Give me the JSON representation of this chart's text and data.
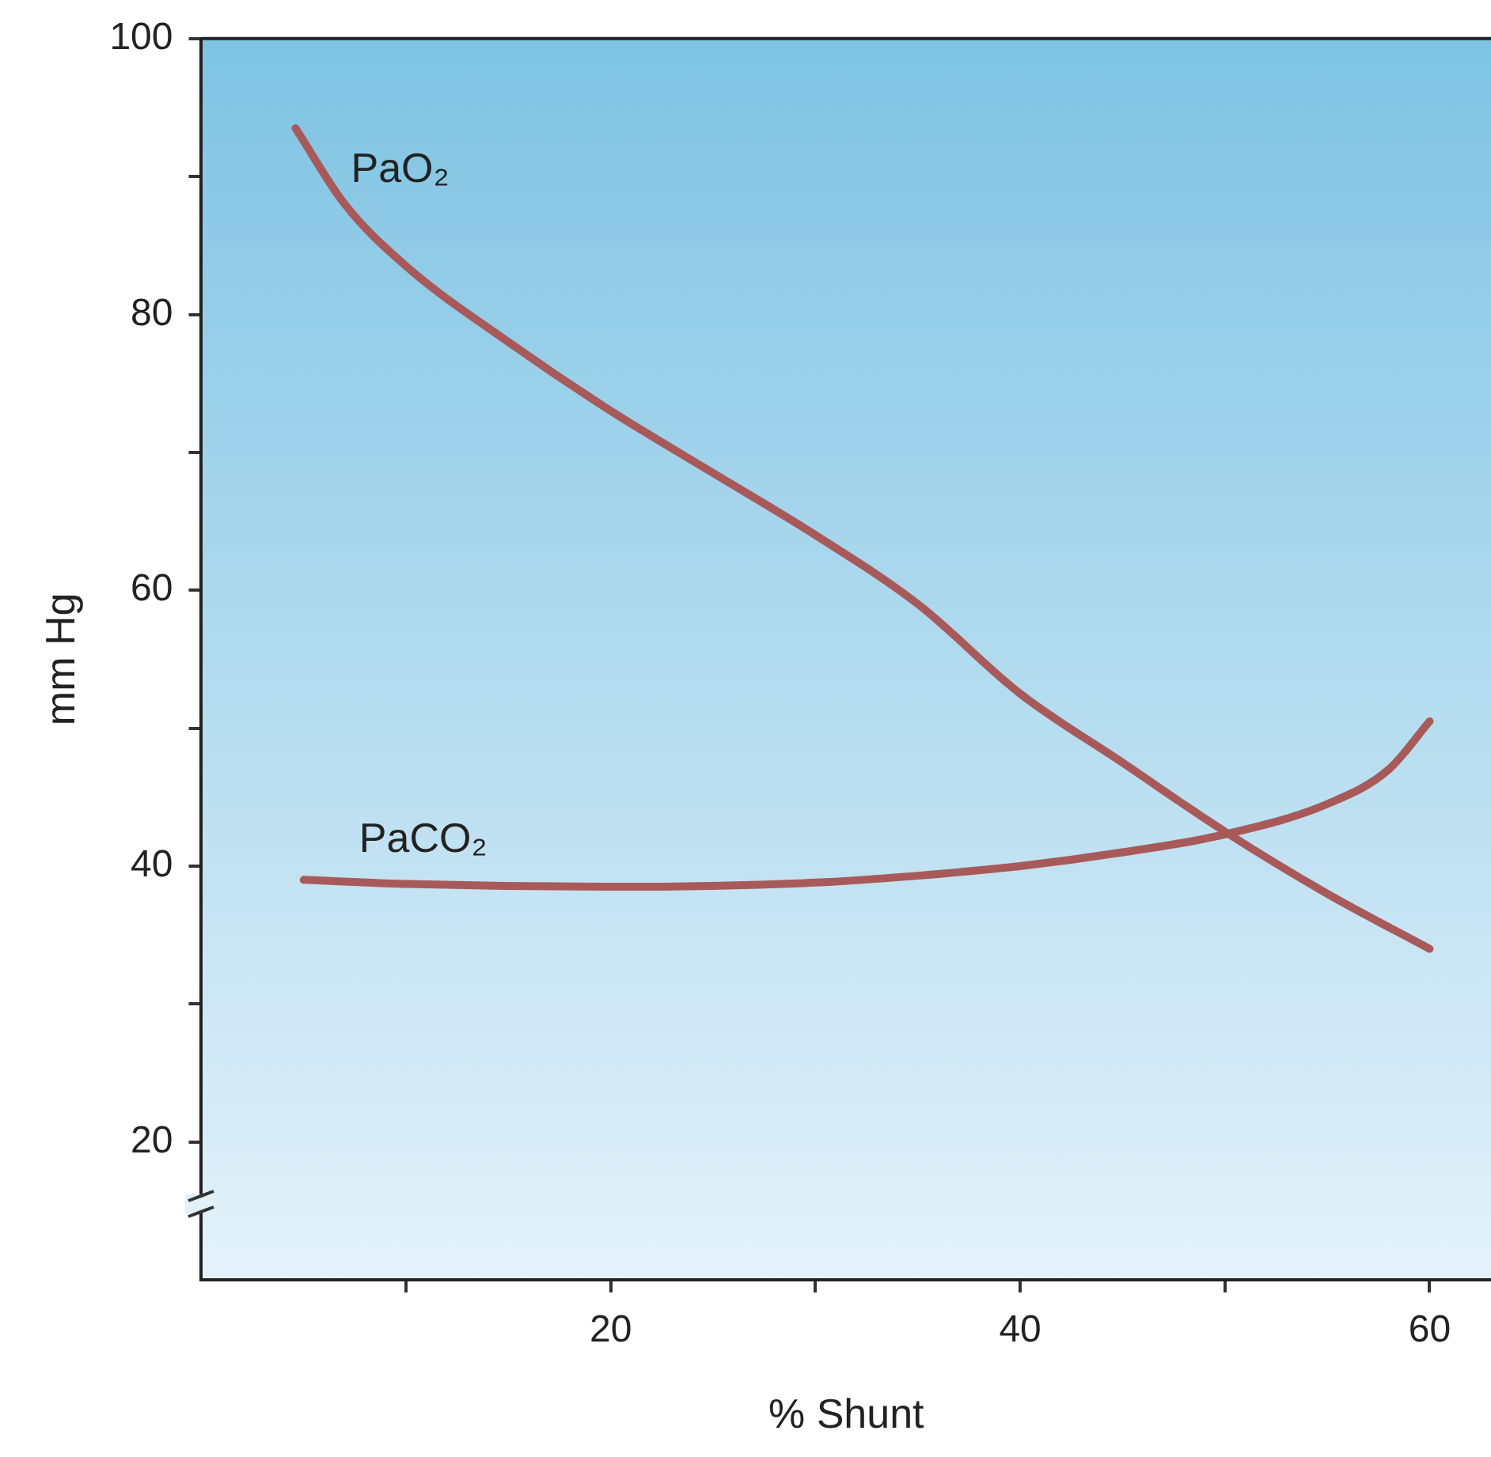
{
  "chart_data": {
    "type": "line",
    "xlabel": "% Shunt",
    "ylabel": "mm Hg",
    "xlim": [
      0,
      63
    ],
    "ylim": [
      10,
      100
    ],
    "xticks": [
      {
        "value": 10,
        "label": null
      },
      20,
      {
        "value": 30,
        "label": null
      },
      40,
      {
        "value": 50,
        "label": null
      },
      60
    ],
    "yticks": [
      20,
      {
        "value": 30,
        "label": null
      },
      40,
      {
        "value": 50,
        "label": null
      },
      60,
      {
        "value": 70,
        "label": null
      },
      80,
      {
        "value": 90,
        "label": null
      },
      100
    ],
    "grid": false,
    "legend": false,
    "marker": "none",
    "line_style": "solid",
    "series": [
      {
        "name": "PaO₂",
        "color": "#a85a5a",
        "x": [
          4.6,
          7,
          10,
          15,
          20,
          25,
          30,
          35,
          40,
          45,
          50,
          55,
          60
        ],
        "values": [
          93.5,
          88,
          83.5,
          78,
          73,
          68.5,
          64,
          59,
          52.5,
          47.5,
          42.5,
          38,
          34
        ]
      },
      {
        "name": "PaCO₂",
        "color": "#a85a5a",
        "x": [
          5,
          10,
          20,
          30,
          35,
          40,
          45,
          50,
          55,
          58,
          60
        ],
        "values": [
          39,
          38.7,
          38.5,
          38.8,
          39.3,
          40,
          41,
          42.3,
          44.5,
          47,
          50.5
        ]
      }
    ]
  }
}
